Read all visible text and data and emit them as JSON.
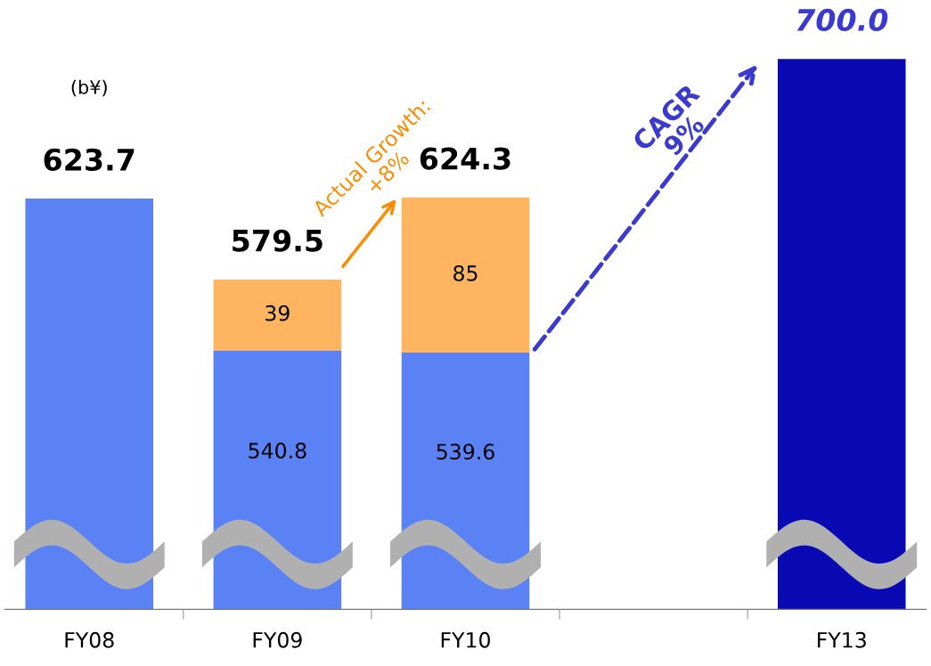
{
  "chart_data": {
    "type": "bar",
    "stacked": true,
    "categories": [
      "FY08",
      "FY09",
      "FY10",
      null,
      "FY13"
    ],
    "series": [
      {
        "colors": [
          "#5b82f5",
          "#5b82f5",
          "#5b82f5",
          null,
          "#0a0ab4"
        ],
        "values": [
          623.7,
          540.8,
          539.6,
          null,
          700.0
        ],
        "value_labels": [
          null,
          "540.8",
          "539.6",
          null,
          null
        ]
      },
      {
        "color": "#ffb55f",
        "values": [
          null,
          38.7,
          84.7,
          null,
          null
        ],
        "value_labels": [
          null,
          "39",
          "85",
          null,
          null
        ]
      }
    ],
    "totals": [
      "623.7",
      "579.5",
      "624.3",
      null,
      "700.0"
    ],
    "tick_labels": "x",
    "grid": false,
    "legend": false,
    "annotations": [
      "(b¥)",
      "Actual Growth:\n+8%",
      "CAGR\n9%"
    ]
  }
}
